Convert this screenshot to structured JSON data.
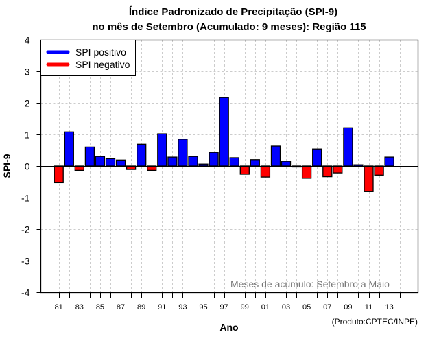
{
  "chart_data": {
    "type": "bar",
    "title": "Índice Padronizado de Precipitação (SPI-9)",
    "subtitle": "no mês de Setembro (Acumulado: 9 meses): Região 115",
    "xlabel": "Ano",
    "ylabel": "SPI-9",
    "ylim": [
      -4,
      4
    ],
    "yticks": [
      4,
      3,
      2,
      1,
      0,
      -1,
      -2,
      -3,
      -4
    ],
    "xlim": [
      1980,
      2015
    ],
    "xtick_years": [
      1981,
      1982,
      1983,
      1984,
      1985,
      1986,
      1987,
      1988,
      1989,
      1990,
      1991,
      1992,
      1993,
      1994,
      1995,
      1996,
      1997,
      1998,
      1999,
      2000,
      2001,
      2002,
      2003,
      2004,
      2005,
      2006,
      2007,
      2008,
      2009,
      2010,
      2011,
      2012,
      2013,
      2014
    ],
    "xtick_labels": [
      "81",
      "83",
      "85",
      "87",
      "89",
      "91",
      "93",
      "95",
      "97",
      "99",
      "01",
      "03",
      "05",
      "07",
      "09",
      "11",
      "13"
    ],
    "xtick_label_years": [
      1981,
      1983,
      1985,
      1987,
      1989,
      1991,
      1993,
      1995,
      1997,
      1999,
      2001,
      2003,
      2005,
      2007,
      2009,
      2011,
      2013
    ],
    "grid": true,
    "categories": [
      1981,
      1982,
      1983,
      1984,
      1985,
      1986,
      1987,
      1988,
      1989,
      1990,
      1991,
      1992,
      1993,
      1994,
      1995,
      1996,
      1997,
      1998,
      1999,
      2000,
      2001,
      2002,
      2003,
      2004,
      2005,
      2006,
      2007,
      2008,
      2009,
      2010,
      2011,
      2012,
      2013
    ],
    "values": [
      -0.53,
      1.08,
      -0.14,
      0.6,
      0.3,
      0.23,
      0.19,
      -0.11,
      0.69,
      -0.14,
      1.02,
      0.28,
      0.85,
      0.3,
      0.06,
      0.43,
      2.17,
      0.26,
      -0.26,
      0.2,
      -0.35,
      0.63,
      0.15,
      -0.03,
      -0.39,
      0.54,
      -0.34,
      -0.22,
      1.21,
      0.04,
      -0.81,
      -0.29,
      0.28
    ],
    "colors": {
      "positive": "#0000ff",
      "negative": "#ff0000"
    },
    "legend": {
      "placement": "top-left",
      "entries": [
        {
          "label": "SPI positivo",
          "color": "#0000ff"
        },
        {
          "label": "SPI negativo",
          "color": "#ff0000"
        }
      ]
    },
    "annotation": "Meses de acúmulo: Setembro a Maio",
    "credit": "(Produto:CPTEC/INPE)"
  }
}
